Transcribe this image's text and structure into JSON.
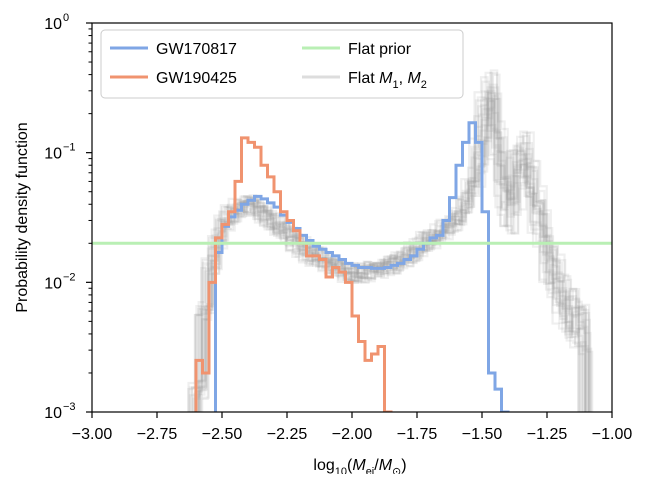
{
  "chart_data": {
    "type": "line",
    "subtype": "step-histogram",
    "x_label": "log10(Mej/M⊙)",
    "y_label": "Probability density function",
    "x_range": [
      -3.0,
      -1.0
    ],
    "y_range": [
      0.001,
      1
    ],
    "y_scale": "log",
    "x_ticks": [
      "−3.00",
      "−2.75",
      "−2.50",
      "−2.25",
      "−2.00",
      "−1.75",
      "−1.50",
      "−1.25",
      "−1.00"
    ],
    "x_tick_values": [
      -3.0,
      -2.75,
      -2.5,
      -2.25,
      -2.0,
      -1.75,
      -1.5,
      -1.25,
      -1.0
    ],
    "y_ticks": [
      "10",
      "10",
      "10",
      "10"
    ],
    "y_tick_exponents": [
      "−3",
      "−2",
      "−1",
      "0"
    ],
    "y_tick_values": [
      0.001,
      0.01,
      0.1,
      1
    ],
    "grid": false,
    "legend_position": "top-left",
    "legend": [
      {
        "label": "GW170817",
        "color": "#7fa6e5"
      },
      {
        "label": "GW190425",
        "color": "#f0936f"
      },
      {
        "label": "Flat prior",
        "color": "#b9efb4"
      },
      {
        "label": "Flat M1, M2",
        "color": "#dddddd"
      }
    ],
    "series": [
      {
        "name": "GW170817",
        "color": "#7fa6e5",
        "bin_width": 0.025,
        "x_start": -2.525,
        "values": [
          0.017,
          0.027,
          0.032,
          0.036,
          0.04,
          0.043,
          0.046,
          0.044,
          0.041,
          0.038,
          0.033,
          0.029,
          0.026,
          0.023,
          0.021,
          0.019,
          0.018,
          0.017,
          0.016,
          0.015,
          0.014,
          0.0135,
          0.013,
          0.013,
          0.0128,
          0.0128,
          0.013,
          0.0135,
          0.014,
          0.015,
          0.016,
          0.018,
          0.02,
          0.022,
          0.023,
          0.03,
          0.045,
          0.08,
          0.12,
          0.17,
          0.12,
          0.035,
          0.002,
          0.0015,
          0.001
        ]
      },
      {
        "name": "GW190425",
        "color": "#f0936f",
        "bin_width": 0.025,
        "x_start": -2.6,
        "values": [
          0.0025,
          0.002,
          0.01,
          0.022,
          0.028,
          0.035,
          0.06,
          0.13,
          0.12,
          0.11,
          0.08,
          0.065,
          0.05,
          0.035,
          0.03,
          0.025,
          0.02,
          0.016,
          0.016,
          0.015,
          0.011,
          0.013,
          0.012,
          0.01,
          0.0055,
          0.0035,
          0.0025,
          0.0028,
          0.0032,
          0.001
        ]
      },
      {
        "name": "Flat prior",
        "color": "#b9efb4",
        "constant": 0.02
      }
    ],
    "flat_m1_m2_band": {
      "color": "#9a9a9a",
      "line_count": 24,
      "description": "ensemble of grey step histograms",
      "x_start": -2.6,
      "bin_width": 0.025,
      "base_values": [
        0.0015,
        0.006,
        0.014,
        0.022,
        0.03,
        0.034,
        0.038,
        0.04,
        0.04,
        0.038,
        0.035,
        0.031,
        0.028,
        0.025,
        0.023,
        0.021,
        0.019,
        0.017,
        0.016,
        0.015,
        0.014,
        0.013,
        0.0125,
        0.012,
        0.012,
        0.012,
        0.0122,
        0.0125,
        0.013,
        0.0135,
        0.014,
        0.015,
        0.016,
        0.0175,
        0.019,
        0.021,
        0.022,
        0.024,
        0.026,
        0.029,
        0.032,
        0.04,
        0.055,
        0.09,
        0.2,
        0.3,
        0.12,
        0.045,
        0.035,
        0.08,
        0.1,
        0.06,
        0.04,
        0.025,
        0.016,
        0.011,
        0.008,
        0.006,
        0.005,
        0.0045
      ]
    }
  }
}
